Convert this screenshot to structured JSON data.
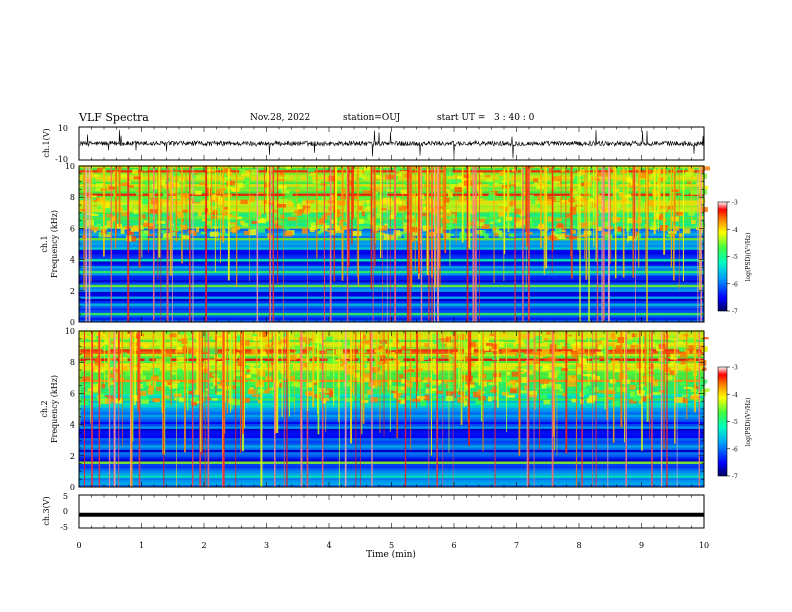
{
  "header": {
    "title": "VLF Spectra",
    "date": "Nov.28, 2022",
    "station": "station=OUJ",
    "start_label": "start  UT  =",
    "start_time": "3  : 40 : 0"
  },
  "chart_data": [
    {
      "type": "line",
      "panel": "ch1-waveform",
      "ylabel": "ch.1(V)",
      "ylim": [
        -10,
        10
      ],
      "y_ticks": [
        "10",
        "-10"
      ],
      "xlim": [
        0,
        10
      ],
      "baseline": 0,
      "noise_amplitude": 1.5
    },
    {
      "type": "heatmap",
      "panel": "ch1-spectrogram",
      "ylabel_top": "ch.1",
      "ylabel": "Frequency (kHz)",
      "ylim": [
        0,
        10
      ],
      "y_ticks": [
        "0",
        "2",
        "4",
        "6",
        "8",
        "10"
      ],
      "xlim": [
        0,
        10
      ],
      "colorbar": {
        "label": "log(PSD)(V²/Hz)",
        "range": [
          -7,
          -3
        ],
        "ticks": [
          "-3",
          "-4",
          "-5",
          "-6",
          "-7"
        ]
      }
    },
    {
      "type": "heatmap",
      "panel": "ch2-spectrogram",
      "ylabel_top": "ch.2",
      "ylabel": "Frequency (kHz)",
      "ylim": [
        0,
        10
      ],
      "y_ticks": [
        "0",
        "2",
        "4",
        "6",
        "8",
        "10"
      ],
      "xlim": [
        0,
        10
      ],
      "colorbar": {
        "label": "log(PSD)(V²/Hz)",
        "range": [
          -7,
          -3
        ],
        "ticks": [
          "-3",
          "-4",
          "-5",
          "-6",
          "-7"
        ]
      }
    },
    {
      "type": "line",
      "panel": "ch3-waveform",
      "ylabel": "ch.3(V)",
      "ylim": [
        -5,
        5
      ],
      "y_ticks": [
        "5",
        "0",
        "-5"
      ],
      "xlim": [
        0,
        10
      ],
      "baseline": -1
    }
  ],
  "x_axis": {
    "label": "Time  (min)",
    "ticks": [
      "0",
      "1",
      "2",
      "3",
      "4",
      "5",
      "6",
      "7",
      "8",
      "9",
      "10"
    ],
    "range": [
      0,
      10
    ]
  },
  "colors": {
    "trace": "#000000",
    "colormap": [
      "#00007f",
      "#0000ff",
      "#00a0ff",
      "#00ffc0",
      "#40ff40",
      "#ffff00",
      "#ff8000",
      "#ff0000",
      "#ffffff"
    ]
  }
}
